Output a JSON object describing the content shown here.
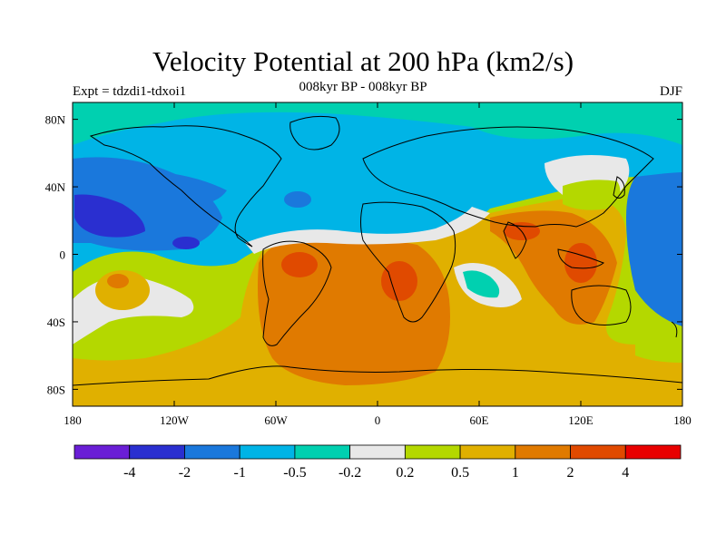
{
  "title": "Velocity Potential at 200 hPa (km2/s)",
  "subtitle": "008kyr BP - 008kyr BP",
  "left_label": "Expt = tdzdi1-tdxoi1",
  "right_label": "DJF",
  "map": {
    "lon_range": [
      -180,
      180
    ],
    "lat_range": [
      -90,
      90
    ],
    "lon_ticks": [
      -180,
      -120,
      -60,
      0,
      60,
      120,
      180
    ],
    "lon_tick_labels": [
      "180",
      "120W",
      "60W",
      "0",
      "60E",
      "120E",
      "180"
    ],
    "lat_ticks": [
      80,
      40,
      0,
      -40,
      -80
    ],
    "lat_tick_labels": [
      "80N",
      "40N",
      "0",
      "40S",
      "80S"
    ],
    "coastlines": "continents-outline"
  },
  "colorbar": {
    "colors": [
      "#6a1ed6",
      "#2a2fd0",
      "#1a78dc",
      "#00b4e6",
      "#00d0b0",
      "#e8e8e8",
      "#b4d800",
      "#e0b000",
      "#e07a00",
      "#e04a00",
      "#e80000"
    ],
    "labels": [
      "-4",
      "-2",
      "-1",
      "-0.5",
      "-0.2",
      "0.2",
      "0.5",
      "1",
      "2",
      "4"
    ]
  }
}
